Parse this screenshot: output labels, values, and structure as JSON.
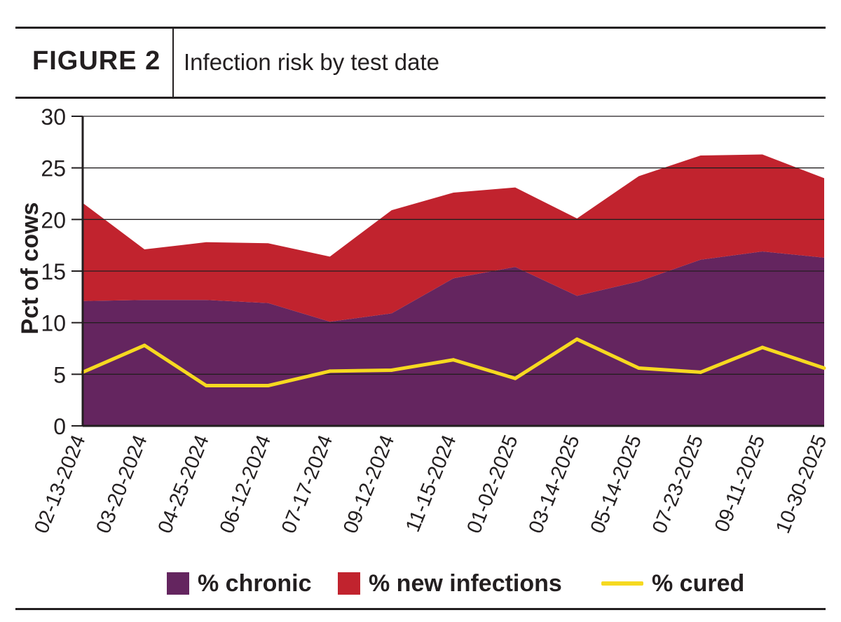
{
  "header": {
    "figure_label": "FIGURE 2",
    "title": "Infection risk by test date"
  },
  "colors": {
    "chronic": "#64255f",
    "new_infections": "#c1232e",
    "cured": "#f6d920",
    "text": "#231f20",
    "grid": "#231f20"
  },
  "chart_data": {
    "type": "area",
    "title": "Infection risk by test date",
    "xlabel": "",
    "ylabel": "Pct of cows",
    "ylim": [
      0,
      30
    ],
    "yticks": [
      0,
      5,
      10,
      15,
      20,
      25,
      30
    ],
    "grid": true,
    "stacked": true,
    "categories": [
      "02-13-2024",
      "03-20-2024",
      "04-25-2024",
      "06-12-2024",
      "07-17-2024",
      "09-12-2024",
      "11-15-2024",
      "01-02-2025",
      "03-14-2025",
      "05-14-2025",
      "07-23-2025",
      "09-11-2025",
      "10-30-2025"
    ],
    "series": [
      {
        "name": "% chronic",
        "type": "area",
        "values": [
          12.1,
          12.2,
          12.2,
          11.9,
          10.1,
          10.9,
          14.3,
          15.4,
          12.6,
          14.0,
          16.1,
          16.9,
          16.3
        ]
      },
      {
        "name": "% new infections",
        "type": "area",
        "values": [
          9.5,
          4.9,
          5.6,
          5.8,
          6.3,
          10.0,
          8.3,
          7.7,
          7.5,
          10.2,
          10.1,
          9.4,
          7.7
        ]
      },
      {
        "name": "% cured",
        "type": "line",
        "values": [
          5.2,
          7.8,
          3.9,
          3.9,
          5.3,
          5.4,
          6.4,
          4.6,
          8.4,
          5.6,
          5.2,
          7.6,
          5.6
        ]
      }
    ],
    "legend_position": "bottom"
  },
  "legend": [
    {
      "label": "% chronic",
      "kind": "swatch",
      "color_key": "chronic"
    },
    {
      "label": "% new infections",
      "kind": "swatch",
      "color_key": "new_infections"
    },
    {
      "label": "% cured",
      "kind": "line",
      "color_key": "cured"
    }
  ]
}
